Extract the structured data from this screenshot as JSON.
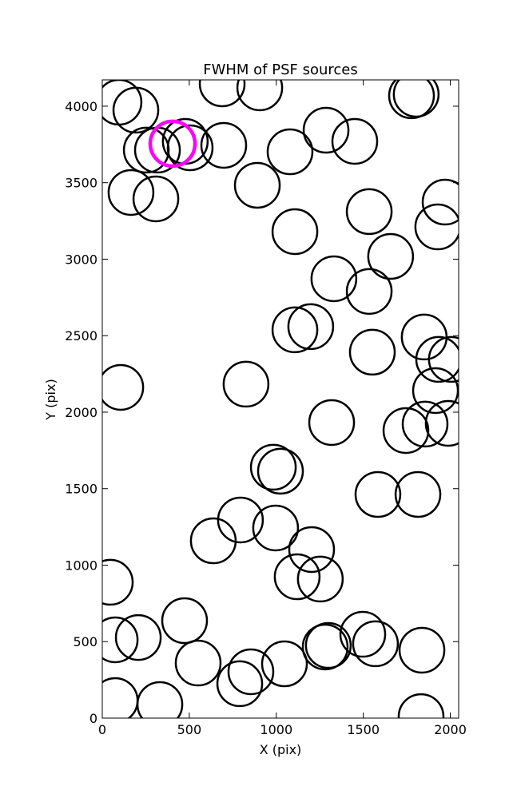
{
  "chart_data": {
    "type": "scatter",
    "title": "FWHM of PSF sources",
    "x_label": "X (pix)",
    "y_label": "Y (pix)",
    "xlim": [
      0,
      2048
    ],
    "ylim": [
      0,
      4172
    ],
    "xticks": [
      0,
      500,
      1000,
      1500,
      2000
    ],
    "yticks": [
      0,
      500,
      1000,
      1500,
      2000,
      2500,
      3000,
      3500,
      4000
    ],
    "grid": false,
    "series": [
      {
        "color": "#000000",
        "x": [
          96,
          193,
          253,
          317,
          477,
          505,
          698,
          689,
          905,
          1079,
          1286,
          1451,
          1777,
          1804,
          165,
          308,
          891,
          1107,
          1534,
          1970,
          1928,
          1657,
          1331,
          1534,
          1107,
          1198,
          1850,
          1552,
          1933,
          2006,
          1915,
          106,
          826,
          1318,
          1745,
          1855,
          1988,
          983,
          1024,
          1584,
          1814,
          638,
          794,
          996,
          1203,
          1120,
          1253,
          46,
          473,
          74,
          207,
          551,
          790,
          854,
          1047,
          1281,
          1299,
          1497,
          1570,
          1837,
          74,
          331,
          1832
        ],
        "values": [
          4026,
          3974,
          3713,
          3713,
          3770,
          3728,
          3744,
          4146,
          4120,
          3702,
          3843,
          3770,
          4068,
          4078,
          3436,
          3394,
          3483,
          3180,
          3311,
          3373,
          3211,
          3018,
          2872,
          2789,
          2538,
          2559,
          2491,
          2392,
          2345,
          2345,
          2141,
          2162,
          2183,
          1932,
          1880,
          1922,
          1927,
          1640,
          1614,
          1462,
          1462,
          1159,
          1295,
          1243,
          1102,
          924,
          909,
          888,
          637,
          512,
          527,
          360,
          225,
          303,
          355,
          465,
          475,
          548,
          486,
          444,
          115,
          89,
          10
        ]
      },
      {
        "color": "#ff00ff",
        "x": [
          404
        ],
        "values": [
          3755
        ]
      }
    ]
  }
}
